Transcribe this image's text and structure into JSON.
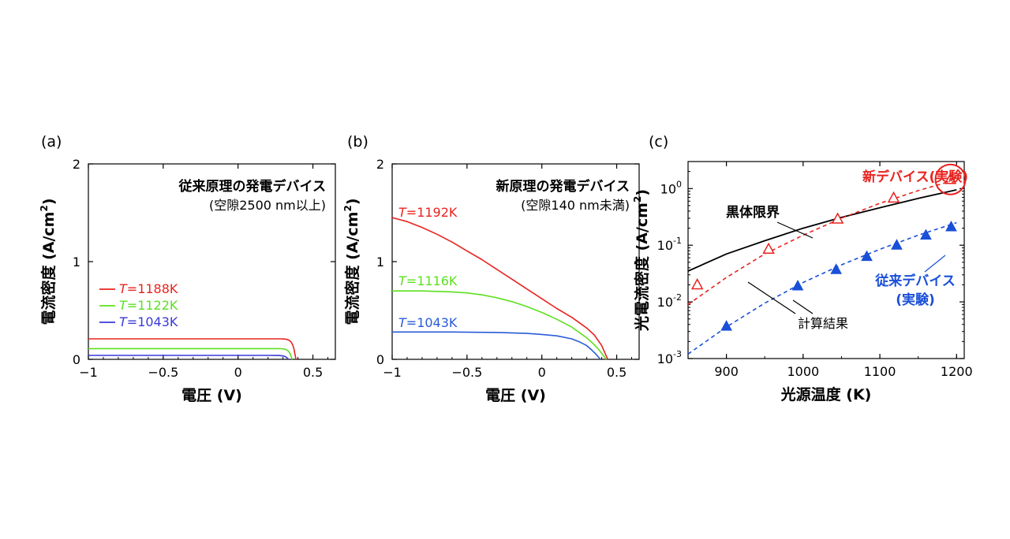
{
  "chart_data": [
    {
      "panel": "(a)",
      "type": "line",
      "title": "従来原理の発電デバイス",
      "subtitle": "(空隙2500 nm以上)",
      "xlabel": "電圧 (V)",
      "ylabel": "電流密度 (A/cm",
      "ylabel_sup": "2",
      "ylabel_end": ")",
      "xlim": [
        -1,
        0.65
      ],
      "ylim": [
        0,
        2
      ],
      "xticks": [
        -1,
        -0.5,
        0,
        0.5
      ],
      "xtick_labels": [
        "−1",
        "−0.5",
        "0",
        "0.5"
      ],
      "yticks": [
        0,
        1,
        2
      ],
      "ytick_labels": [
        "0",
        "1",
        "2"
      ],
      "series": [
        {
          "name_prefix": "T",
          "name": "=1188K",
          "color": "#e8231f",
          "isc": 0.21,
          "voc": 0.385,
          "n": 0.05
        },
        {
          "name_prefix": "T",
          "name": "=1122K",
          "color": "#5ce01f",
          "isc": 0.11,
          "voc": 0.36,
          "n": 0.05
        },
        {
          "name_prefix": "T",
          "name": "=1043K",
          "color": "#3a3ad8",
          "isc": 0.04,
          "voc": 0.335,
          "n": 0.05
        }
      ]
    },
    {
      "panel": "(b)",
      "type": "line",
      "title": "新原理の発電デバイス",
      "subtitle": "(空隙140 nm未満)",
      "xlabel": "電圧 (V)",
      "ylabel": "電流密度 (A/cm",
      "ylabel_sup": "2",
      "ylabel_end": ")",
      "xlim": [
        -1,
        0.65
      ],
      "ylim": [
        0,
        2
      ],
      "xticks": [
        -1,
        -0.5,
        0,
        0.5
      ],
      "xtick_labels": [
        "−1",
        "−0.5",
        "0",
        "0.5"
      ],
      "yticks": [
        0,
        1,
        2
      ],
      "ytick_labels": [
        "0",
        "1",
        "2"
      ],
      "series": [
        {
          "name_prefix": "T",
          "name": "=1192K",
          "color": "#e8231f",
          "x": [
            -1.0,
            -0.9,
            -0.8,
            -0.7,
            -0.6,
            -0.5,
            -0.4,
            -0.3,
            -0.2,
            -0.1,
            0.0,
            0.1,
            0.2,
            0.3,
            0.35,
            0.4,
            0.42,
            0.44
          ],
          "y": [
            1.45,
            1.41,
            1.35,
            1.28,
            1.2,
            1.11,
            1.02,
            0.92,
            0.82,
            0.72,
            0.62,
            0.52,
            0.43,
            0.32,
            0.25,
            0.14,
            0.07,
            0.0
          ]
        },
        {
          "name_prefix": "T",
          "name": "=1116K",
          "color": "#5ce01f",
          "x": [
            -1.0,
            -0.8,
            -0.6,
            -0.5,
            -0.4,
            -0.3,
            -0.2,
            -0.1,
            0.0,
            0.1,
            0.2,
            0.3,
            0.35,
            0.38,
            0.41,
            0.43
          ],
          "y": [
            0.7,
            0.7,
            0.69,
            0.68,
            0.66,
            0.63,
            0.59,
            0.54,
            0.48,
            0.41,
            0.33,
            0.22,
            0.15,
            0.1,
            0.04,
            0.0
          ]
        },
        {
          "name_prefix": "T",
          "name": "=1043K",
          "color": "#2a5bd8",
          "x": [
            -1.0,
            -0.6,
            -0.3,
            -0.1,
            0.0,
            0.1,
            0.2,
            0.25,
            0.3,
            0.33,
            0.36,
            0.38,
            0.39
          ],
          "y": [
            0.28,
            0.28,
            0.275,
            0.265,
            0.255,
            0.24,
            0.21,
            0.18,
            0.14,
            0.1,
            0.055,
            0.02,
            0.0
          ]
        }
      ]
    },
    {
      "panel": "(c)",
      "type": "scatter",
      "xlabel": "光源温度 (K)",
      "ylabel": "光電流密度 (A/cm",
      "ylabel_sup": "2",
      "ylabel_end": ")",
      "xlim": [
        850,
        1210
      ],
      "ylim": [
        0.001,
        3
      ],
      "yscale": "log",
      "xticks": [
        900,
        1000,
        1100,
        1200
      ],
      "xtick_labels": [
        "900",
        "1000",
        "1100",
        "1200"
      ],
      "ytick_exponents": [
        -3,
        -2,
        -1,
        0
      ],
      "ytick_base": "10",
      "blackbody": {
        "label": "黒体限界",
        "color": "#000000",
        "x": [
          850,
          900,
          950,
          1000,
          1050,
          1100,
          1150,
          1200
        ],
        "y": [
          0.035,
          0.07,
          0.12,
          0.2,
          0.31,
          0.46,
          0.67,
          0.95
        ]
      },
      "new_device": {
        "label": "新デバイス(実験)",
        "color": "#e8231f",
        "points_x": [
          862,
          955,
          1045,
          1118,
          1192
        ],
        "points_y": [
          0.02,
          0.085,
          0.29,
          0.68,
          1.45
        ],
        "fit_x": [
          850,
          900,
          950,
          1000,
          1050,
          1100,
          1150,
          1200
        ],
        "fit_y": [
          0.009,
          0.027,
          0.07,
          0.15,
          0.3,
          0.55,
          0.92,
          1.45
        ]
      },
      "old_device": {
        "label": "従来デバイス",
        "label2": "(実験)",
        "color": "#1a4fd8",
        "points_x": [
          900,
          993,
          1043,
          1083,
          1122,
          1160,
          1193
        ],
        "points_y": [
          0.0037,
          0.019,
          0.037,
          0.063,
          0.1,
          0.15,
          0.21
        ],
        "fit_x": [
          850,
          900,
          950,
          1000,
          1050,
          1100,
          1150,
          1200
        ],
        "fit_y": [
          0.0012,
          0.0036,
          0.0095,
          0.022,
          0.045,
          0.085,
          0.15,
          0.25
        ]
      },
      "calc_label": "計算結果"
    }
  ]
}
